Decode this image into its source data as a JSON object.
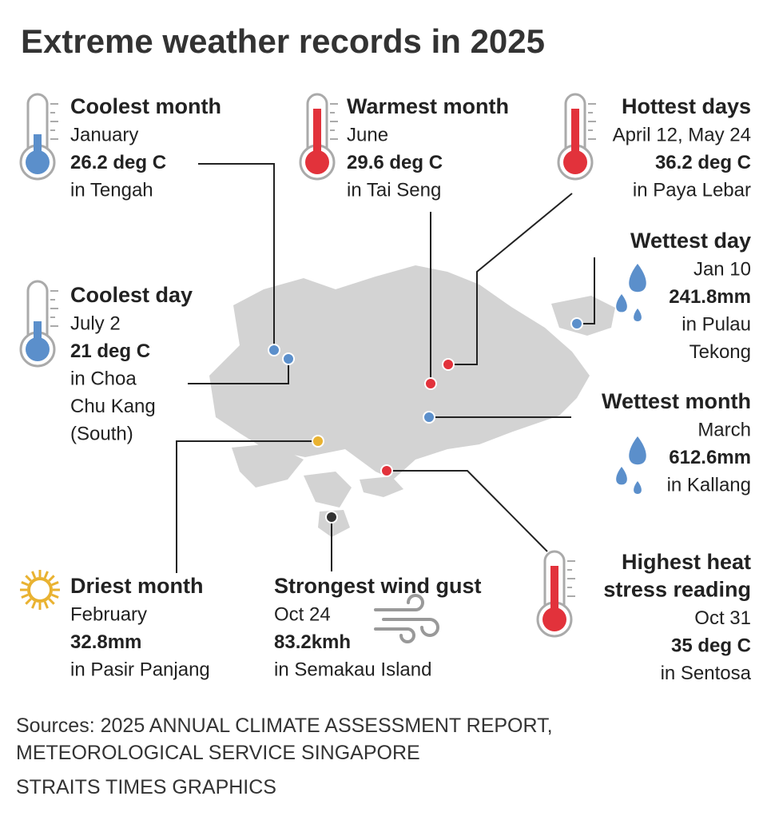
{
  "title": "Extreme weather records in 2025",
  "records": [
    {
      "heading": [
        "Coolest month"
      ],
      "date": "January",
      "value": "26.2 deg C",
      "location": [
        "in Tengah"
      ]
    },
    {
      "heading": [
        "Warmest month"
      ],
      "date": "June",
      "value": "29.6 deg C",
      "location": [
        "in Tai Seng"
      ]
    },
    {
      "heading": [
        "Hottest days"
      ],
      "date": "April 12, May 24",
      "value": "36.2 deg C",
      "location": [
        "in Paya Lebar"
      ]
    },
    {
      "heading": [
        "Wettest day"
      ],
      "date": "Jan 10",
      "value": "241.8mm",
      "location": [
        "in Pulau",
        "Tekong"
      ]
    },
    {
      "heading": [
        "Coolest day"
      ],
      "date": "July 2",
      "value": "21 deg C",
      "location": [
        "in Choa",
        "Chu Kang",
        "(South)"
      ]
    },
    {
      "heading": [
        "Wettest month"
      ],
      "date": "March",
      "value": "612.6mm",
      "location": [
        "in Kallang"
      ]
    },
    {
      "heading": [
        "Driest month"
      ],
      "date": "February",
      "value": "32.8mm",
      "location": [
        "in Pasir Panjang"
      ]
    },
    {
      "heading": [
        "Strongest wind gust"
      ],
      "date": "Oct 24",
      "value": "83.2kmh",
      "location": [
        "in Semakau Island"
      ]
    },
    {
      "heading": [
        "Highest heat",
        "stress reading"
      ],
      "date": "Oct 31",
      "value": "35 deg C",
      "location": [
        "in Sentosa"
      ]
    }
  ],
  "sources": [
    "Sources: 2025 ANNUAL CLIMATE ASSESSMENT REPORT,",
    "METEOROLOGICAL SERVICE SINGAPORE"
  ],
  "credit": "STRAITS TIMES GRAPHICS"
}
